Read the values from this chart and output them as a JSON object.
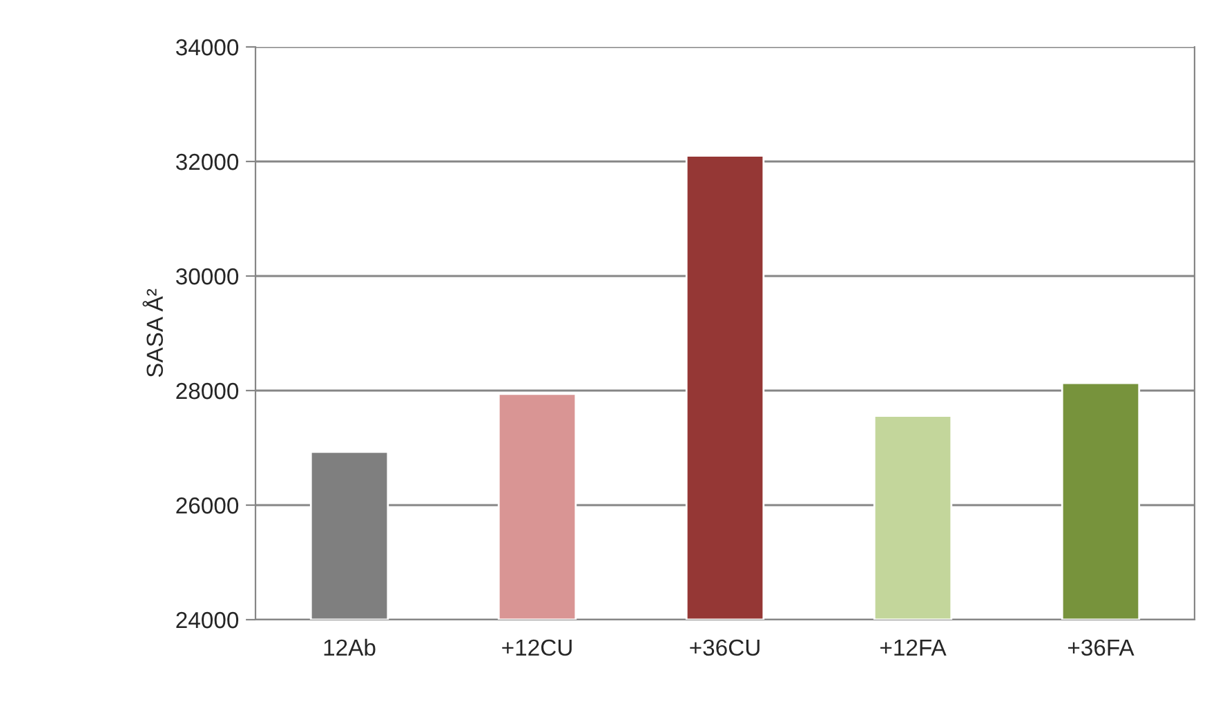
{
  "chart_data": {
    "type": "bar",
    "ylabel": "SASA Å²",
    "categories": [
      "12Ab",
      "+12CU",
      "+36CU",
      "+12FA",
      "+36FA"
    ],
    "values": [
      26930,
      27940,
      32100,
      27560,
      28130
    ],
    "colors": [
      "#7f7f7f",
      "#d99594",
      "#953735",
      "#c3d69b",
      "#77933c"
    ],
    "ylim": [
      24000,
      34000
    ],
    "yticks": [
      24000,
      26000,
      28000,
      30000,
      32000,
      34000
    ],
    "grid": "y"
  }
}
